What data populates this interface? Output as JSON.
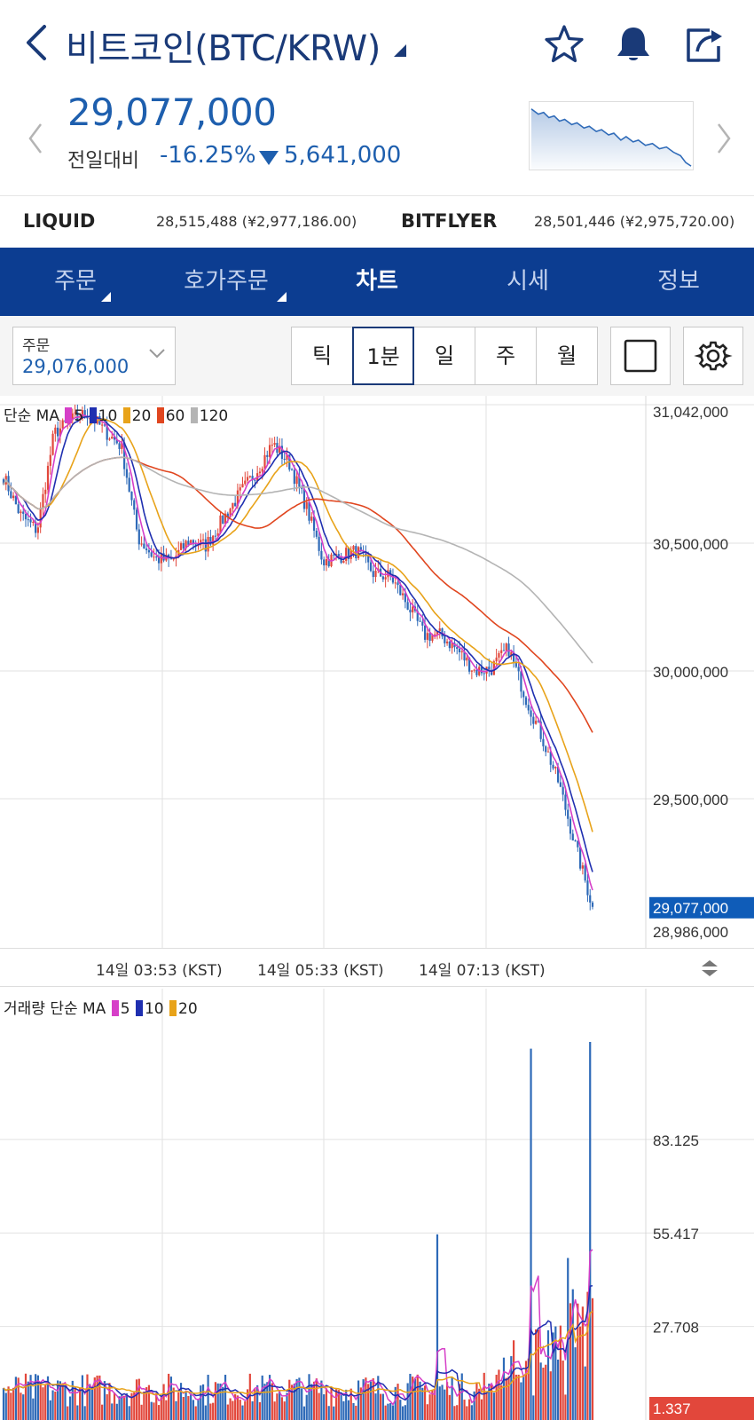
{
  "header": {
    "title": "비트코인(BTC/KRW)",
    "icons": [
      "back-arrow-icon",
      "star-icon",
      "bell-icon",
      "share-icon"
    ]
  },
  "price": {
    "current": "29,077,000",
    "change_label": "전일대비",
    "change_pct": "-16.25%",
    "change_amount": "5,641,000",
    "change_color": "#1e5fae"
  },
  "exchanges": [
    {
      "name": "LIQUID",
      "value": "28,515,488 (¥2,977,186.00)"
    },
    {
      "name": "BITFLYER",
      "value": "28,501,446 (¥2,975,720.00)"
    }
  ],
  "tabs": [
    {
      "label": "주문"
    },
    {
      "label": "호가주문"
    },
    {
      "label": "차트"
    },
    {
      "label": "시세"
    },
    {
      "label": "정보"
    }
  ],
  "controls": {
    "order_label": "주문",
    "order_value": "29,076,000",
    "intervals": [
      "틱",
      "1분",
      "일",
      "주",
      "월"
    ],
    "selected_interval": "1분"
  },
  "chart": {
    "price_legend": {
      "prefix": "단순 MA",
      "periods": [
        "5",
        "10",
        "20",
        "60",
        "120"
      ]
    },
    "volume_legend": {
      "prefix": "거래량 단순 MA",
      "periods": [
        "5",
        "10",
        "20"
      ]
    },
    "time_labels": [
      "14일 03:53 (KST)",
      "14일 05:33 (KST)",
      "14일 07:13 (KST)"
    ],
    "current_price_tag": "29,077,000",
    "volume_last_tag": "1.337",
    "colors": {
      "up": "#e2473b",
      "down": "#2e6ab8",
      "ma5": "#d63fc8",
      "ma10": "#1f2fb0",
      "ma20": "#e8a31a",
      "ma60": "#e0461f",
      "ma120": "#b4b4b4",
      "tag_bg": "#0f5cb8",
      "vol_tag_bg": "#e2473b"
    }
  },
  "chart_data": [
    {
      "type": "candlestick",
      "title": "",
      "x_ticks": [
        "14일 03:53 (KST)",
        "14일 05:33 (KST)",
        "14일 07:13 (KST)"
      ],
      "y_ticks": [
        31042000,
        30500000,
        30000000,
        29500000
      ],
      "ylim": [
        28986000,
        31042000
      ],
      "last": 29077000,
      "close_path": [
        30760000,
        30610000,
        30550000,
        30930000,
        30980000,
        31010000,
        30940000,
        30880000,
        30520000,
        30440000,
        30430000,
        30510000,
        30490000,
        30590000,
        30690000,
        30780000,
        30890000,
        30810000,
        30640000,
        30430000,
        30450000,
        30470000,
        30380000,
        30370000,
        30260000,
        30140000,
        30140000,
        30080000,
        30000000,
        30010000,
        30090000,
        29900000,
        29740000,
        29560000,
        29310000,
        29077000
      ],
      "series": [
        {
          "name": "5",
          "values": []
        },
        {
          "name": "10",
          "values": []
        },
        {
          "name": "20",
          "values": []
        },
        {
          "name": "60",
          "values": []
        },
        {
          "name": "120",
          "values": []
        }
      ],
      "grid": true
    },
    {
      "type": "bar",
      "title": "",
      "y_ticks": [
        83.125,
        55.417,
        27.708
      ],
      "last": 1.337,
      "spikes": [
        {
          "x_frac": 0.735,
          "value": 55.0
        },
        {
          "x_frac": 0.895,
          "value": 110.0
        },
        {
          "x_frac": 0.995,
          "value": 112.0
        },
        {
          "x_frac": 0.96,
          "value": 48.0
        }
      ],
      "series": [
        {
          "name": "5",
          "values": []
        },
        {
          "name": "10",
          "values": []
        },
        {
          "name": "20",
          "values": []
        }
      ],
      "grid": true
    }
  ]
}
